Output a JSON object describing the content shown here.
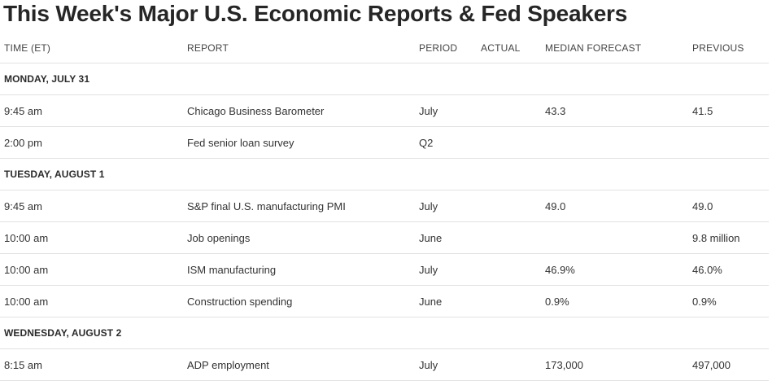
{
  "title": "This Week's Major U.S. Economic Reports & Fed Speakers",
  "columns": {
    "time": "TIME (ET)",
    "report": "REPORT",
    "period": "PERIOD",
    "actual": "ACTUAL",
    "median": "MEDIAN FORECAST",
    "previous": "PREVIOUS"
  },
  "days": [
    {
      "label": "MONDAY, JULY 31",
      "rows": [
        {
          "time": "9:45 am",
          "report": "Chicago Business Barometer",
          "period": "July",
          "actual": "",
          "median": "43.3",
          "previous": "41.5"
        },
        {
          "time": "2:00 pm",
          "report": "Fed senior loan survey",
          "period": "Q2",
          "actual": "",
          "median": "",
          "previous": ""
        }
      ]
    },
    {
      "label": "TUESDAY, AUGUST 1",
      "rows": [
        {
          "time": "9:45 am",
          "report": "S&P final U.S. manufacturing PMI",
          "period": "July",
          "actual": "",
          "median": "49.0",
          "previous": "49.0"
        },
        {
          "time": "10:00 am",
          "report": "Job openings",
          "period": "June",
          "actual": "",
          "median": "",
          "previous": "9.8 million"
        },
        {
          "time": "10:00 am",
          "report": "ISM manufacturing",
          "period": "July",
          "actual": "",
          "median": "46.9%",
          "previous": "46.0%"
        },
        {
          "time": "10:00 am",
          "report": "Construction spending",
          "period": "June",
          "actual": "",
          "median": "0.9%",
          "previous": "0.9%"
        }
      ]
    },
    {
      "label": "WEDNESDAY, AUGUST 2",
      "rows": [
        {
          "time": "8:15 am",
          "report": "ADP employment",
          "period": "July",
          "actual": "",
          "median": "173,000",
          "previous": "497,000"
        }
      ]
    }
  ]
}
